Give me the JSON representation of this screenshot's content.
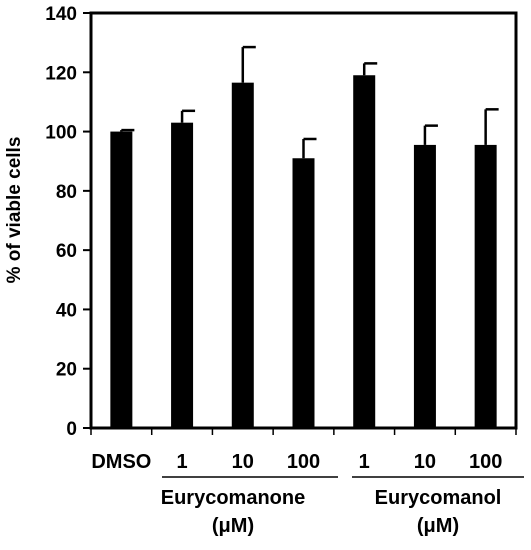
{
  "chart_data": {
    "type": "bar",
    "categories": [
      "DMSO",
      "1",
      "10",
      "100",
      "1",
      "10",
      "100"
    ],
    "values": [
      100,
      103,
      116.5,
      91,
      119,
      95.5,
      95.5
    ],
    "errors": [
      0.5,
      4,
      12,
      6.5,
      4,
      6.5,
      12
    ],
    "ylabel": "% of viable cells",
    "ylim": [
      0,
      140
    ],
    "yticks": [
      0,
      20,
      40,
      60,
      80,
      100,
      120,
      140
    ],
    "groups": [
      {
        "label": "Eurycomanone",
        "unit": "(μM)"
      },
      {
        "label": "Eurycomanol",
        "unit": "(μM)"
      }
    ],
    "bar_color": "#000000",
    "grid": false
  }
}
